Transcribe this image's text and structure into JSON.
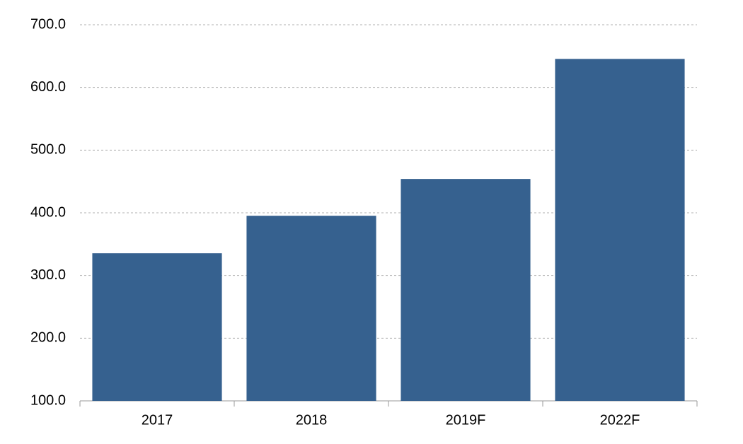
{
  "chart_data": {
    "type": "bar",
    "categories": [
      "2017",
      "2018",
      "2019F",
      "2022F"
    ],
    "values": [
      335.5,
      395.3,
      454.0,
      645.5
    ],
    "color": "#36618f",
    "ylim": [
      100,
      700
    ],
    "yticks": [
      {
        "value": 100,
        "label": "100.0"
      },
      {
        "value": 200,
        "label": "200.0"
      },
      {
        "value": 300,
        "label": "300.0"
      },
      {
        "value": 400,
        "label": "400.0"
      },
      {
        "value": 500,
        "label": "500.0"
      },
      {
        "value": 600,
        "label": "600.0"
      },
      {
        "value": 700,
        "label": "700.0"
      }
    ],
    "grid": true
  }
}
